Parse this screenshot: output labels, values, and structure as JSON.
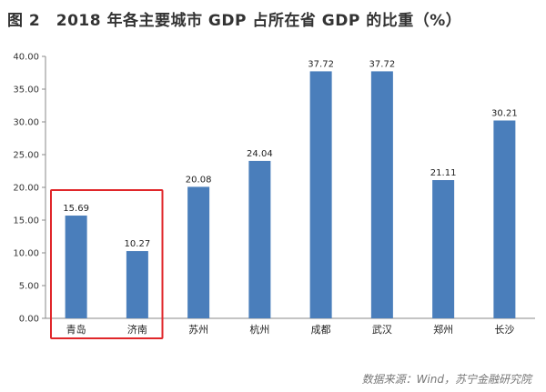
{
  "title": "图 2　2018 年各主要城市 GDP 占所在省 GDP 的比重（%）",
  "source": "数据来源：Wind，苏宁金融研究院",
  "colors": {
    "bar": "#4a7ebb",
    "highlight_box": "#e0262a",
    "axis": "#888888"
  },
  "chart_data": {
    "type": "bar",
    "title": "图 2　2018 年各主要城市 GDP 占所在省 GDP 的比重（%）",
    "categories": [
      "青岛",
      "济南",
      "苏州",
      "杭州",
      "成都",
      "武汉",
      "郑州",
      "长沙"
    ],
    "values": [
      15.69,
      10.27,
      20.08,
      24.04,
      37.72,
      37.72,
      21.11,
      30.21
    ],
    "data_labels": [
      "15.69",
      "10.27",
      "20.08",
      "24.04",
      "37.72",
      "37.72",
      "21.11",
      "30.21"
    ],
    "yticks": [
      "0.00",
      "5.00",
      "10.00",
      "15.00",
      "20.00",
      "25.00",
      "30.00",
      "35.00",
      "40.00"
    ],
    "ylim": [
      0,
      40
    ],
    "xlabel": "",
    "ylabel": "",
    "grid": false,
    "legend": "none",
    "highlight": [
      "青岛",
      "济南"
    ]
  }
}
